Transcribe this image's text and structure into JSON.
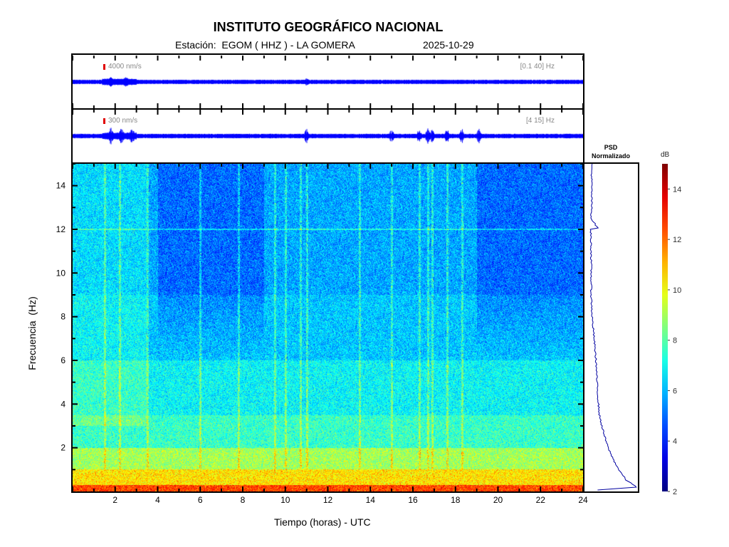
{
  "header": {
    "title": "INSTITUTO GEOGRÁFICO NACIONAL",
    "station": "Estación:  EGOM ( HHZ ) - LA GOMERA",
    "date": "2025-10-29"
  },
  "traces": [
    {
      "scale": "4000 nm/s",
      "band": "[0.1 40] Hz",
      "events_hours": [
        1.8,
        2.5,
        11.0
      ],
      "noise": 0.25
    },
    {
      "scale": "300 nm/s",
      "band": "[4 15] Hz",
      "events_hours": [
        1.8,
        2.3,
        2.8,
        11.0,
        15.0,
        16.3,
        16.7,
        16.9,
        17.6,
        18.3,
        19.1
      ],
      "noise": 0.3
    }
  ],
  "psd": {
    "title_line1": "PSD",
    "title_line2": "Normalizado"
  },
  "colorbar": {
    "label": "dB",
    "range": [
      2,
      15
    ],
    "ticks": [
      "2",
      "4",
      "6",
      "8",
      "10",
      "12",
      "14"
    ]
  },
  "chart_data": {
    "type": "heatmap",
    "title": "INSTITUTO GEOGRÁFICO NACIONAL",
    "xlabel": "Tiempo (horas) - UTC",
    "ylabel": "Frecuencia  (Hz)",
    "xlim": [
      0,
      24
    ],
    "ylim": [
      0,
      15
    ],
    "xticks": [
      "2",
      "4",
      "6",
      "8",
      "10",
      "12",
      "14",
      "16",
      "18",
      "20",
      "22",
      "24"
    ],
    "yticks": [
      "2",
      "4",
      "6",
      "8",
      "10",
      "12",
      "14"
    ],
    "band_levels_db": [
      {
        "fmin": 0,
        "fmax": 0.3,
        "db": 12.5
      },
      {
        "fmin": 0.3,
        "fmax": 1.0,
        "db": 10.5
      },
      {
        "fmin": 1.0,
        "fmax": 2.0,
        "db": 9.0
      },
      {
        "fmin": 2.0,
        "fmax": 3.5,
        "db": 7.6
      },
      {
        "fmin": 3.5,
        "fmax": 6.0,
        "db": 6.9
      },
      {
        "fmin": 6.0,
        "fmax": 9.0,
        "db": 6.2
      },
      {
        "fmin": 9.0,
        "fmax": 15.0,
        "db": 5.8
      }
    ],
    "quiet_periods_hours": [
      [
        4,
        9
      ],
      [
        19,
        24
      ]
    ],
    "events_hours": [
      1.5,
      2.2,
      3.5,
      6.0,
      7.8,
      9.5,
      10.0,
      10.7,
      11.0,
      13.5,
      15.0,
      16.3,
      16.7,
      16.9,
      17.6,
      18.3
    ],
    "persistent_line_hz": 12.0,
    "psd_normalized": {
      "freq_hz": [
        0.05,
        0.2,
        0.5,
        1,
        1.5,
        2,
        2.5,
        3,
        3.5,
        4,
        5,
        6,
        7,
        8,
        9,
        10,
        11,
        12,
        12.01,
        12.5,
        13,
        14,
        15
      ],
      "value": [
        0.1,
        1.0,
        0.78,
        0.62,
        0.5,
        0.4,
        0.33,
        0.27,
        0.22,
        0.2,
        0.17,
        0.15,
        0.11,
        0.07,
        0.05,
        0.05,
        0.05,
        0.04,
        0.2,
        0.05,
        0.06,
        0.06,
        0.06
      ]
    }
  }
}
